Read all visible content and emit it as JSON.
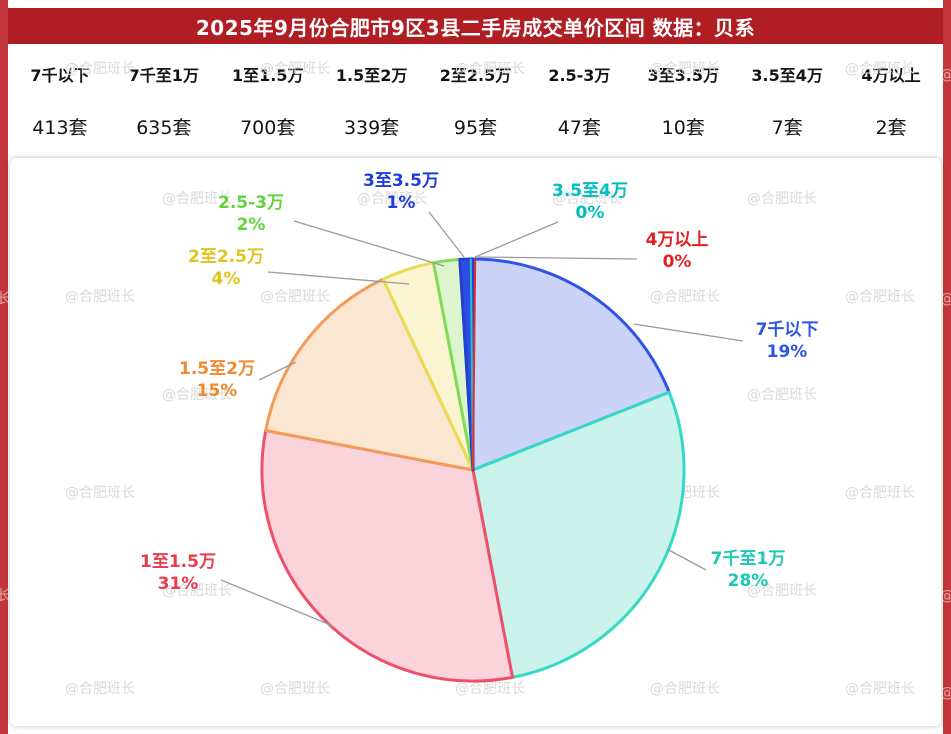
{
  "page": {
    "title": "2025年9月份合肥市9区3县二手房成交单价区间 数据：贝系",
    "watermark": "@合肥班长",
    "colors": {
      "title_bg": "#B01E24",
      "edge_red": "#C2363B",
      "watermark_gray": "#D9D9D9",
      "leader_line": "#9B9B9B"
    }
  },
  "table": {
    "headers": [
      "7千以下",
      "7千至1万",
      "1至1.5万",
      "1.5至2万",
      "2至2.5万",
      "2.5-3万",
      "3至3.5万",
      "3.5至4万",
      "4万以上"
    ],
    "values": [
      "413套",
      "635套",
      "700套",
      "339套",
      "95套",
      "47套",
      "10套",
      "7套",
      "2套"
    ]
  },
  "chart_data": {
    "type": "pie",
    "title": "2025年9月份合肥市9区3县二手房成交单价区间",
    "source": "贝系",
    "unit": "套",
    "slices": [
      {
        "label": "7千以下",
        "count": 413,
        "pct": 19,
        "pct_label": "19%",
        "fill": "#CBD3F7",
        "stroke": "#2E55E6",
        "text_color": "#2E55E6"
      },
      {
        "label": "7千至1万",
        "count": 635,
        "pct": 28,
        "pct_label": "28%",
        "fill": "#CBF3EB",
        "stroke": "#35D9C5",
        "text_color": "#1BC9B4"
      },
      {
        "label": "1至1.5万",
        "count": 700,
        "pct": 31,
        "pct_label": "31%",
        "fill": "#FAD4DA",
        "stroke": "#EE5068",
        "text_color": "#E93A4E"
      },
      {
        "label": "1.5至2万",
        "count": 339,
        "pct": 15,
        "pct_label": "15%",
        "fill": "#FBE6D2",
        "stroke": "#F39B59",
        "text_color": "#F08930"
      },
      {
        "label": "2至2.5万",
        "count": 95,
        "pct": 4,
        "pct_label": "4%",
        "fill": "#FBF4D0",
        "stroke": "#EBDB52",
        "text_color": "#DFC41F"
      },
      {
        "label": "2.5-3万",
        "count": 47,
        "pct": 2,
        "pct_label": "2%",
        "fill": "#DDF5CD",
        "stroke": "#82DB58",
        "text_color": "#62D33F"
      },
      {
        "label": "3至3.5万",
        "count": 10,
        "pct": 1,
        "pct_label": "1%",
        "fill": "#2B4FE3",
        "stroke": "#2340D0",
        "text_color": "#1F3CD8"
      },
      {
        "label": "3.5至4万",
        "count": 7,
        "pct": 0,
        "pct_label": "0%",
        "fill": "#2ABFC4",
        "stroke": "#2ABFC4",
        "text_color": "#00BEBE"
      },
      {
        "label": "4万以上",
        "count": 2,
        "pct": 0,
        "pct_label": "0%",
        "fill": "#E03030",
        "stroke": "#E03030",
        "text_color": "#E51F1F"
      }
    ]
  }
}
